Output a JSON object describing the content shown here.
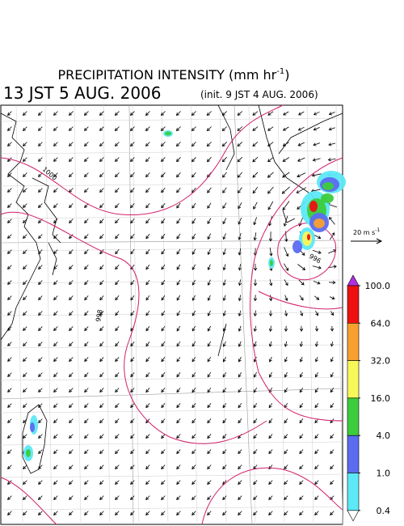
{
  "title": {
    "main": "PRECIPITATION INTENSITY (mm hr",
    "superscript": "-1",
    "close": ")"
  },
  "valid_time": "13 JST 5 AUG. 2006",
  "init_time": "(init. 9 JST 4 AUG. 2006)",
  "vector_reference": {
    "text": "20 m s",
    "superscript": "-1"
  },
  "contour_labels": [
    "1000",
    "998",
    "996"
  ],
  "colorbar": {
    "levels": [
      {
        "value": 100,
        "label": "100.0"
      },
      {
        "value": 64,
        "label": "64.0"
      },
      {
        "value": 32,
        "label": "32.0"
      },
      {
        "value": 16,
        "label": "16.0"
      },
      {
        "value": 4,
        "label": "4.0"
      },
      {
        "value": 1,
        "label": "1.0"
      },
      {
        "value": 0.4,
        "label": "0.4"
      }
    ],
    "colors": [
      "#ee1111",
      "#f7a030",
      "#f7f75a",
      "#3ccc3c",
      "#5c6cf0",
      "#5ce8f7"
    ],
    "over_color": "#b030e0",
    "under_color": "#ffffff"
  }
}
